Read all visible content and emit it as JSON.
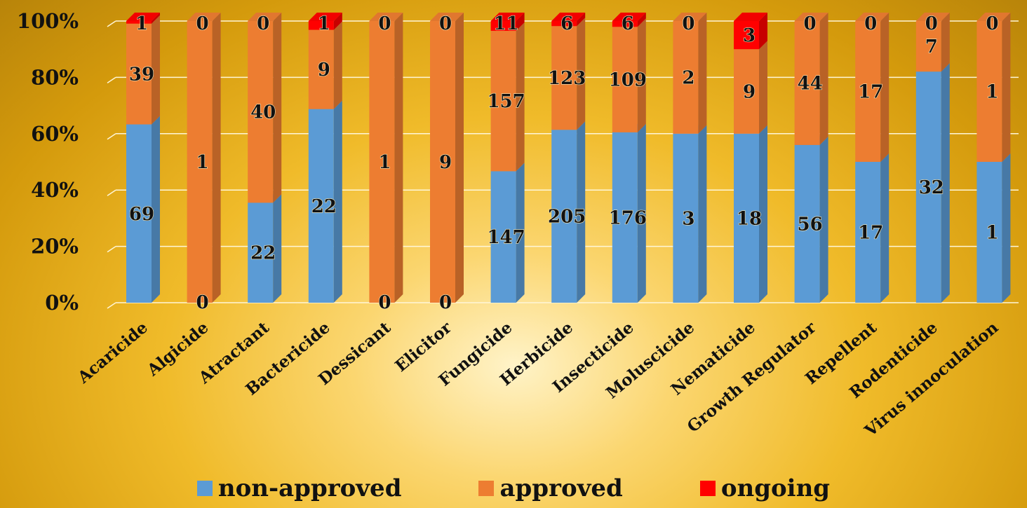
{
  "chart_data": {
    "type": "bar",
    "stacked": "percent",
    "categories": [
      "Acaricide",
      "Algicide",
      "Atractant",
      "Bactericide",
      "Dessicant",
      "Elicitor",
      "Fungicide",
      "Herbicide",
      "Insecticide",
      "Moluscicide",
      "Nematicide",
      "Growth Regulator",
      "Repellent",
      "Rodenticide",
      "Virus innoculation"
    ],
    "series": [
      {
        "name": "non-approved",
        "color": "#5b9bd5",
        "values": [
          69,
          0,
          22,
          22,
          0,
          0,
          147,
          205,
          176,
          3,
          18,
          56,
          17,
          32,
          1
        ]
      },
      {
        "name": "approved",
        "color": "#ed7d31",
        "values": [
          39,
          1,
          40,
          9,
          1,
          9,
          157,
          123,
          109,
          2,
          9,
          44,
          17,
          7,
          1
        ]
      },
      {
        "name": "ongoing",
        "color": "#ff0000",
        "values": [
          1,
          0,
          0,
          1,
          0,
          0,
          11,
          6,
          6,
          0,
          3,
          0,
          0,
          0,
          0
        ]
      }
    ],
    "yticks": [
      "0%",
      "20%",
      "40%",
      "60%",
      "80%",
      "100%"
    ],
    "ylim": [
      0,
      100
    ],
    "legend_position": "bottom",
    "grid": true
  }
}
